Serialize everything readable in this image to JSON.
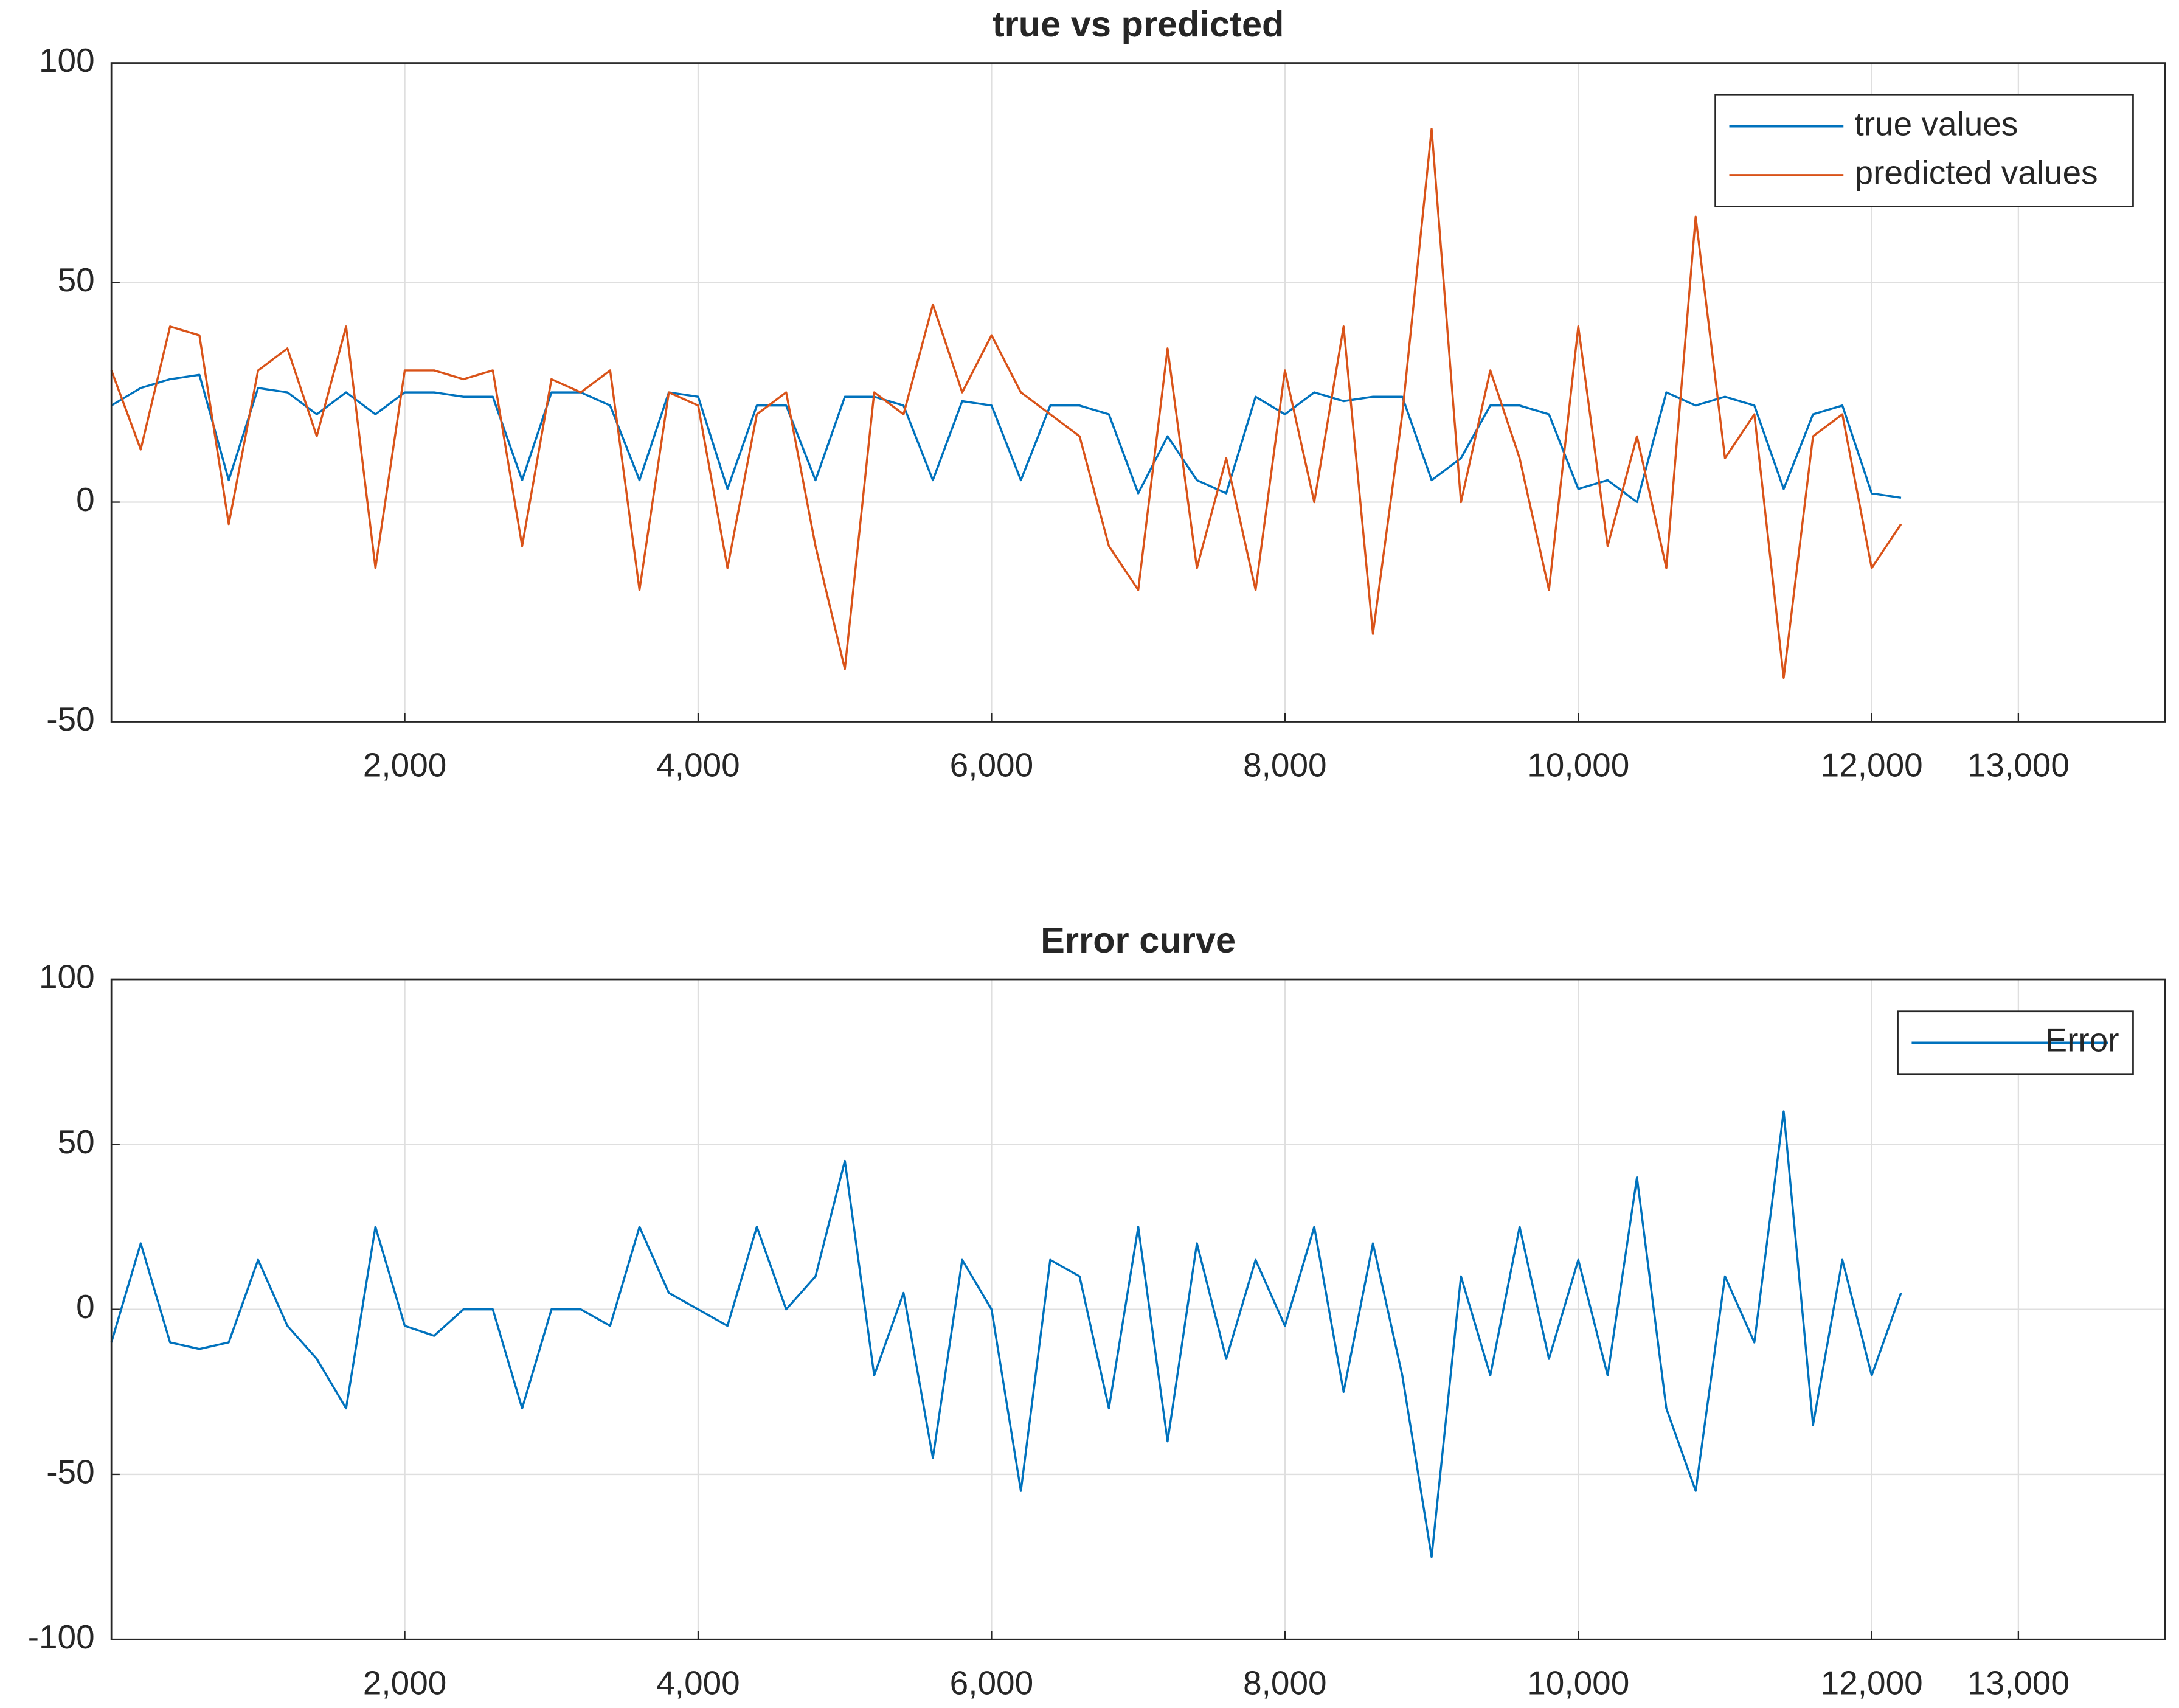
{
  "chart_data": [
    {
      "type": "line",
      "title": "true vs predicted",
      "legend": "northeast",
      "grid": true,
      "x": [
        0,
        200,
        400,
        600,
        800,
        1000,
        1200,
        1400,
        1600,
        1800,
        2000,
        2200,
        2400,
        2600,
        2800,
        3000,
        3200,
        3400,
        3600,
        3800,
        4000,
        4200,
        4400,
        4600,
        4800,
        5000,
        5200,
        5400,
        5600,
        5800,
        6000,
        6200,
        6400,
        6600,
        6800,
        7000,
        7200,
        7400,
        7600,
        7800,
        8000,
        8200,
        8400,
        8600,
        8800,
        9000,
        9200,
        9400,
        9600,
        9800,
        10000,
        10200,
        10400,
        10600,
        10800,
        11000,
        11200,
        11400,
        11600,
        11800,
        12000,
        12200
      ],
      "xlim": [
        0,
        14000
      ],
      "xticks": [
        {
          "value": 2000,
          "label": "2,000"
        },
        {
          "value": 4000,
          "label": "4,000"
        },
        {
          "value": 6000,
          "label": "6,000"
        },
        {
          "value": 8000,
          "label": "8,000"
        },
        {
          "value": 10000,
          "label": "10,000"
        },
        {
          "value": 12000,
          "label": "12,000"
        },
        {
          "value": 13000,
          "label": "13,000"
        }
      ],
      "ylim": [
        -50,
        100
      ],
      "yticks": [
        -50,
        0,
        50,
        100
      ],
      "series": [
        {
          "name": "true values",
          "color": "#0072bd",
          "values": [
            22,
            26,
            28,
            29,
            5,
            26,
            25,
            20,
            25,
            20,
            25,
            25,
            24,
            24,
            5,
            25,
            25,
            22,
            5,
            25,
            24,
            3,
            22,
            22,
            5,
            24,
            24,
            22,
            5,
            23,
            22,
            5,
            22,
            22,
            20,
            2,
            15,
            5,
            2,
            24,
            20,
            25,
            23,
            24,
            24,
            5,
            10,
            22,
            22,
            20,
            3,
            5,
            0,
            25,
            22,
            24,
            22,
            3,
            20,
            22,
            2,
            1
          ]
        },
        {
          "name": "predicted values",
          "color": "#d95319",
          "values": [
            30,
            12,
            40,
            38,
            -5,
            30,
            35,
            15,
            40,
            -15,
            30,
            30,
            28,
            30,
            -10,
            28,
            25,
            30,
            -20,
            25,
            22,
            -15,
            20,
            25,
            -10,
            -38,
            25,
            20,
            45,
            25,
            38,
            25,
            20,
            15,
            -10,
            -20,
            35,
            -15,
            10,
            -20,
            30,
            0,
            40,
            -30,
            20,
            85,
            0,
            30,
            10,
            -20,
            40,
            -10,
            15,
            -15,
            65,
            10,
            20,
            -40,
            15,
            20,
            -15,
            -5
          ]
        }
      ]
    },
    {
      "type": "line",
      "title": "Error curve",
      "legend": "northeast",
      "grid": true,
      "x": [
        0,
        200,
        400,
        600,
        800,
        1000,
        1200,
        1400,
        1600,
        1800,
        2000,
        2200,
        2400,
        2600,
        2800,
        3000,
        3200,
        3400,
        3600,
        3800,
        4000,
        4200,
        4400,
        4600,
        4800,
        5000,
        5200,
        5400,
        5600,
        5800,
        6000,
        6200,
        6400,
        6600,
        6800,
        7000,
        7200,
        7400,
        7600,
        7800,
        8000,
        8200,
        8400,
        8600,
        8800,
        9000,
        9200,
        9400,
        9600,
        9800,
        10000,
        10200,
        10400,
        10600,
        10800,
        11000,
        11200,
        11400,
        11600,
        11800,
        12000,
        12200
      ],
      "xlim": [
        0,
        14000
      ],
      "xticks": [
        {
          "value": 2000,
          "label": "2,000"
        },
        {
          "value": 4000,
          "label": "4,000"
        },
        {
          "value": 6000,
          "label": "6,000"
        },
        {
          "value": 8000,
          "label": "8,000"
        },
        {
          "value": 10000,
          "label": "10,000"
        },
        {
          "value": 12000,
          "label": "12,000"
        },
        {
          "value": 13000,
          "label": "13,000"
        }
      ],
      "ylim": [
        -100,
        100
      ],
      "yticks": [
        -100,
        -50,
        0,
        50,
        100
      ],
      "series": [
        {
          "name": "Error",
          "color": "#0072bd",
          "values": [
            -10,
            20,
            -10,
            -12,
            -10,
            15,
            -5,
            -15,
            -30,
            25,
            -5,
            -8,
            0,
            0,
            -30,
            0,
            0,
            -5,
            25,
            5,
            0,
            -5,
            25,
            0,
            10,
            45,
            -20,
            5,
            -45,
            15,
            0,
            -55,
            15,
            10,
            -30,
            25,
            -40,
            20,
            -15,
            15,
            -5,
            25,
            -25,
            20,
            -20,
            -75,
            10,
            -20,
            25,
            -15,
            15,
            -20,
            40,
            -30,
            -55,
            10,
            -10,
            60,
            -35,
            15,
            -20,
            5
          ]
        }
      ]
    }
  ]
}
